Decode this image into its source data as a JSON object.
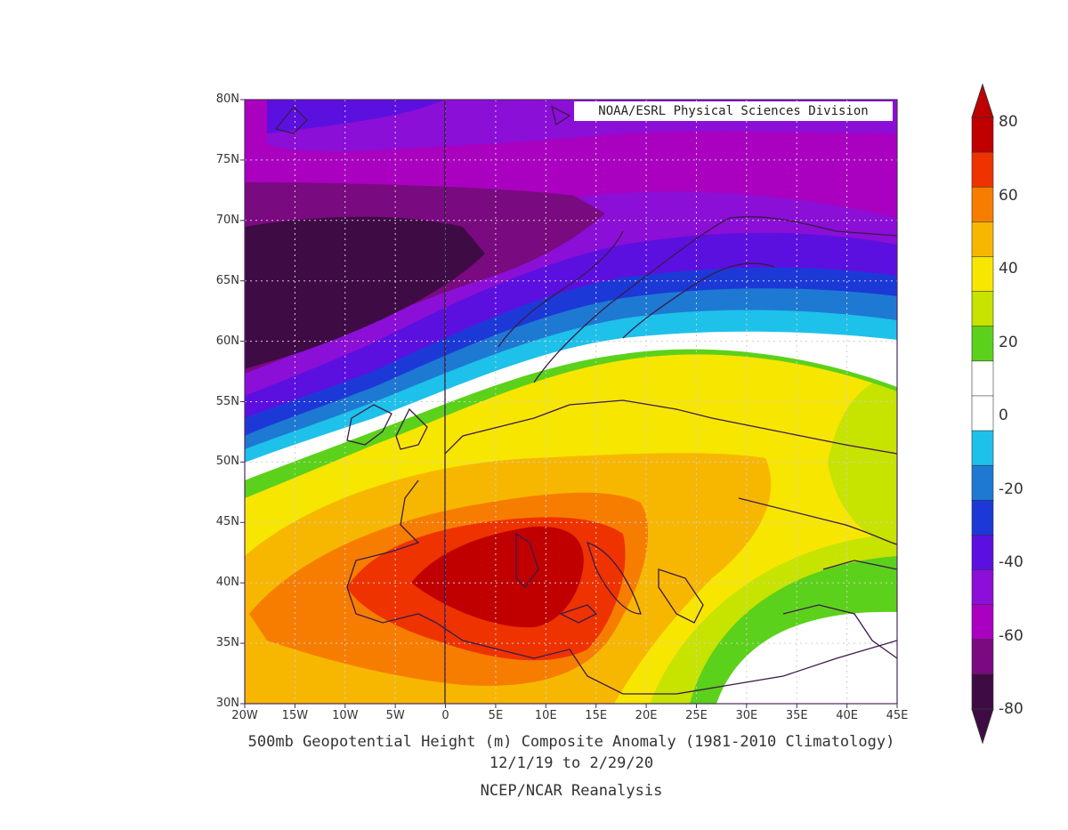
{
  "map": {
    "credit": "NOAA/ESRL Physical Sciences Division",
    "lat_labels": [
      "80N",
      "75N",
      "70N",
      "65N",
      "60N",
      "55N",
      "50N",
      "45N",
      "40N",
      "35N",
      "30N"
    ],
    "lon_labels": [
      "20W",
      "15W",
      "10W",
      "5W",
      "0",
      "5E",
      "10E",
      "15E",
      "20E",
      "25E",
      "30E",
      "35E",
      "40E",
      "45E"
    ],
    "title": "500mb Geopotential Height (m) Composite Anomaly (1981-2010 Climatology)",
    "date_range": "12/1/19  to 2/29/20",
    "source": "NCEP/NCAR Reanalysis",
    "extent": {
      "lon": [
        -20,
        45
      ],
      "lat": [
        30,
        80
      ]
    },
    "colors": {
      "coastline": "#3a1a4a",
      "frame": "#4a2a5a"
    }
  },
  "colorbar": {
    "labels": [
      "80",
      "60",
      "40",
      "20",
      "0",
      "-20",
      "-40",
      "-60",
      "-80"
    ],
    "colors": [
      "#c00000",
      "#ee3300",
      "#f77d00",
      "#f7b700",
      "#f7e600",
      "#c7e300",
      "#5bd11b",
      "#ffffff",
      "#ffffff",
      "#1dc1ea",
      "#1e79d2",
      "#1c39d7",
      "#5b10e0",
      "#8b0fd6",
      "#aa00c0",
      "#7a0a80",
      "#3f0b45"
    ]
  }
}
